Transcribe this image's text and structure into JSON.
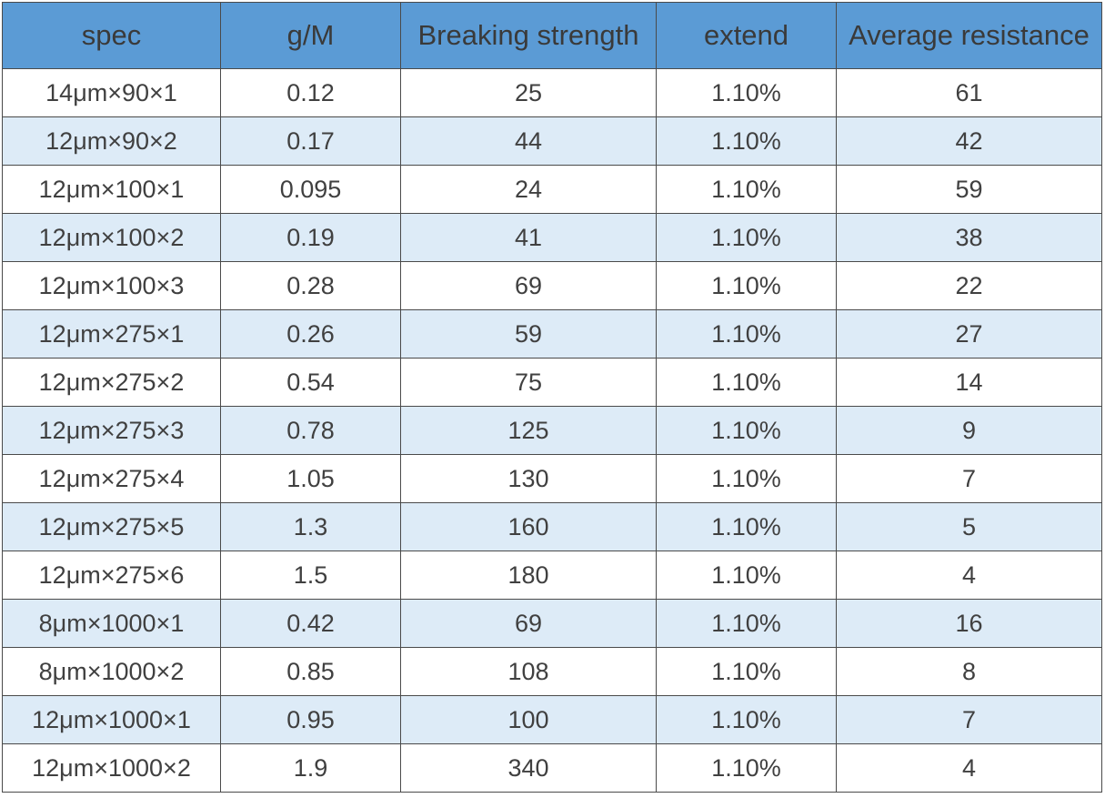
{
  "table": {
    "headers": [
      "spec",
      "g/M",
      "Breaking strength",
      "extend",
      "Average resistance"
    ],
    "rows": [
      [
        "14μm×90×1",
        "0.12",
        "25",
        "1.10%",
        "61"
      ],
      [
        "12μm×90×2",
        "0.17",
        "44",
        "1.10%",
        "42"
      ],
      [
        "12μm×100×1",
        "0.095",
        "24",
        "1.10%",
        "59"
      ],
      [
        "12μm×100×2",
        "0.19",
        "41",
        "1.10%",
        "38"
      ],
      [
        "12μm×100×3",
        "0.28",
        "69",
        "1.10%",
        "22"
      ],
      [
        "12μm×275×1",
        "0.26",
        "59",
        "1.10%",
        "27"
      ],
      [
        "12μm×275×2",
        "0.54",
        "75",
        "1.10%",
        "14"
      ],
      [
        "12μm×275×3",
        "0.78",
        "125",
        "1.10%",
        "9"
      ],
      [
        "12μm×275×4",
        "1.05",
        "130",
        "1.10%",
        "7"
      ],
      [
        "12μm×275×5",
        "1.3",
        "160",
        "1.10%",
        "5"
      ],
      [
        "12μm×275×6",
        "1.5",
        "180",
        "1.10%",
        "4"
      ],
      [
        "8μm×1000×1",
        "0.42",
        "69",
        "1.10%",
        "16"
      ],
      [
        "8μm×1000×2",
        "0.85",
        "108",
        "1.10%",
        "8"
      ],
      [
        "12μm×1000×1",
        "0.95",
        "100",
        "1.10%",
        "7"
      ],
      [
        "12μm×1000×2",
        "1.9",
        "340",
        "1.10%",
        "4"
      ]
    ],
    "colors": {
      "header_bg": "#5b9bd5",
      "stripe_bg": "#ddebf7",
      "row_bg": "#ffffff",
      "border": "#4a4a4a"
    }
  }
}
